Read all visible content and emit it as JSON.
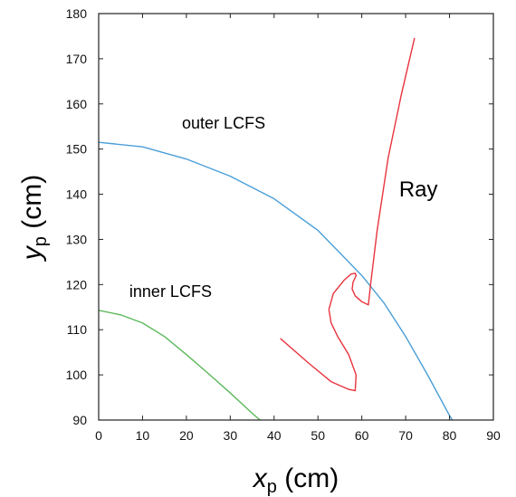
{
  "chart_data": {
    "type": "line",
    "xlabel": {
      "symbol": "x",
      "sub": "p",
      "unit": " (cm)"
    },
    "ylabel": {
      "symbol": "y",
      "sub": "p",
      "unit": " (cm)"
    },
    "xlim": [
      0,
      90
    ],
    "ylim": [
      90,
      180
    ],
    "xticks": [
      0,
      10,
      20,
      30,
      40,
      50,
      60,
      70,
      80,
      90
    ],
    "yticks": [
      90,
      100,
      110,
      120,
      130,
      140,
      150,
      160,
      170,
      180
    ],
    "grid": false,
    "series": [
      {
        "name": "outer LCFS",
        "color": "#4a9fd8",
        "x": [
          0,
          10,
          20,
          30,
          40,
          50,
          60,
          65,
          70,
          75,
          80,
          81
        ],
        "y": [
          151.5,
          150.5,
          147.8,
          144,
          139,
          132,
          122,
          116,
          108.5,
          100,
          91,
          89.5
        ]
      },
      {
        "name": "inner LCFS",
        "color": "#5cb85c",
        "x": [
          0,
          5,
          10,
          15,
          20,
          25,
          30,
          35,
          38
        ],
        "y": [
          114.3,
          113.3,
          111.5,
          108.5,
          104.5,
          100.3,
          96,
          91.5,
          89
        ]
      },
      {
        "name": "Ray",
        "color": "#e8343e",
        "x": [
          41.5,
          48,
          53,
          57,
          58.5,
          58.7,
          57,
          54.5,
          53,
          52.5,
          53.5,
          56,
          57.5,
          58.5,
          58.7,
          58,
          57.8,
          58.5,
          60,
          61.5,
          62,
          63.5,
          66,
          69,
          72
        ],
        "y": [
          108,
          102.5,
          98.5,
          96.8,
          96.5,
          100,
          104.5,
          108.5,
          111.5,
          114.5,
          118,
          121,
          122.3,
          122.5,
          122,
          120.5,
          119,
          117.5,
          116.2,
          115.5,
          120,
          132,
          148,
          162,
          174.5
        ]
      }
    ],
    "annotations": [
      {
        "text": "outer LCFS",
        "x": 19,
        "y": 154.5,
        "size": 18
      },
      {
        "text": "inner LCFS",
        "x": 7,
        "y": 117.3,
        "size": 18
      },
      {
        "text": "Ray",
        "x": 68.5,
        "y": 139.5,
        "size": 24
      }
    ]
  }
}
